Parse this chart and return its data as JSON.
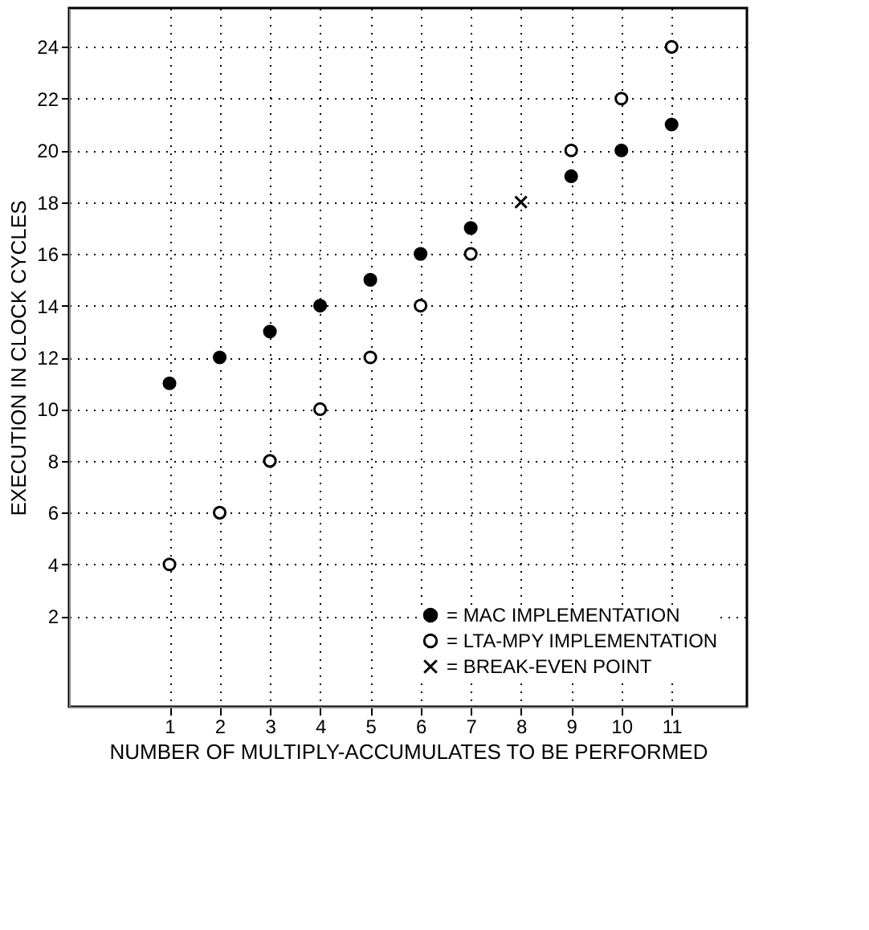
{
  "chart_data": {
    "type": "scatter",
    "xlabel": "NUMBER OF MULTIPLY-ACCUMULATES TO BE PERFORMED",
    "ylabel": "EXECUTION IN CLOCK CYCLES",
    "xlim": [
      -1,
      12.5
    ],
    "xticks": [
      1,
      2,
      3,
      4,
      5,
      6,
      7,
      8,
      9,
      10,
      11
    ],
    "ylim": [
      -1.5,
      25.5
    ],
    "yticks": [
      2,
      4,
      6,
      8,
      10,
      12,
      14,
      16,
      18,
      20,
      22,
      24
    ],
    "grid": true,
    "legend": "bottom right",
    "line_style": "dotted",
    "series": [
      {
        "name": "= MAC IMPLEMENTATION",
        "color": "#000000",
        "marker": "circle",
        "x": [
          1,
          2,
          3,
          4,
          5,
          6,
          7,
          9,
          10,
          11
        ],
        "values": [
          11,
          12,
          13,
          14,
          15,
          16,
          17,
          19,
          20,
          21
        ]
      },
      {
        "name": "= LTA-MPY IMPLEMENTATION",
        "color": "#000000",
        "marker": "circle",
        "x": [
          1,
          2,
          3,
          4,
          5,
          6,
          7,
          9,
          10,
          11
        ],
        "values": [
          4,
          6,
          8,
          10,
          12,
          14,
          16,
          20,
          22,
          24
        ]
      },
      {
        "name": "= BREAK-EVEN POINT",
        "color": "#000000",
        "marker": "cross",
        "x": [
          8
        ],
        "values": [
          18
        ]
      }
    ]
  }
}
